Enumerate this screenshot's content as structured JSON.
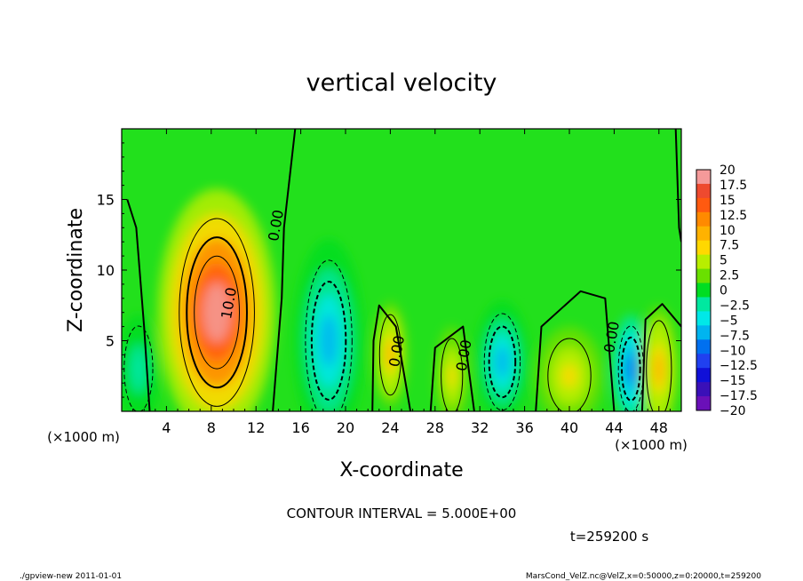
{
  "chart_data": {
    "type": "heatmap",
    "title": "vertical velocity",
    "xlabel": "X-coordinate",
    "ylabel": "Z-coordinate",
    "x_unit": "(×1000 m)",
    "y_unit": "(×1000 m)",
    "xlim": [
      0,
      50
    ],
    "ylim": [
      0,
      20
    ],
    "x_ticks": [
      "4",
      "8",
      "12",
      "16",
      "20",
      "24",
      "28",
      "32",
      "36",
      "40",
      "44",
      "48"
    ],
    "y_ticks": [
      "5",
      "10",
      "15"
    ],
    "contour_interval_text": "CONTOUR INTERVAL = 5.000E+00",
    "time_text": "t=259200 s",
    "contour_labels": [
      {
        "text": "0.00",
        "x": 14.2,
        "z": 13.1
      },
      {
        "text": "10.0",
        "x": 10.0,
        "z": 7.6
      },
      {
        "text": "0.00",
        "x": 25.0,
        "z": 4.2
      },
      {
        "text": "0.00",
        "x": 31.0,
        "z": 3.9
      },
      {
        "text": "0.00",
        "x": 44.2,
        "z": 5.2
      }
    ],
    "colorbar": {
      "levels": [
        20,
        17.5,
        15,
        12.5,
        10,
        7.5,
        5,
        2.5,
        0,
        -2.5,
        -5,
        -7.5,
        -10,
        -12.5,
        -15,
        -17.5,
        -20
      ],
      "labels": [
        "20",
        "17.5",
        "15",
        "12.5",
        "10",
        "7.5",
        "5",
        "2.5",
        "0",
        "−2.5",
        "−5",
        "−7.5",
        "−10",
        "−12.5",
        "−15",
        "−17.5",
        "−20"
      ],
      "colors": [
        "#f59a9a",
        "#ee4a2f",
        "#ff5a10",
        "#ff8a00",
        "#ffb200",
        "#ffd800",
        "#b8ee00",
        "#6ae000",
        "#00dd22",
        "#00e8a0",
        "#00e8e8",
        "#00b4f0",
        "#0070f0",
        "#2040f0",
        "#1010d8",
        "#3a10b8",
        "#6a10b8"
      ]
    },
    "features": [
      {
        "kind": "updraft",
        "x": 8.5,
        "z": 7.0,
        "peak": 17.5
      },
      {
        "kind": "downdraft",
        "x": 18.5,
        "z": 5.0,
        "peak": -10
      },
      {
        "kind": "updraft",
        "x": 24.0,
        "z": 4.0,
        "peak": 7.5
      },
      {
        "kind": "updraft",
        "x": 29.5,
        "z": 2.5,
        "peak": 5
      },
      {
        "kind": "downdraft",
        "x": 34.0,
        "z": 3.5,
        "peak": -10
      },
      {
        "kind": "updraft",
        "x": 40.0,
        "z": 2.5,
        "peak": 5
      },
      {
        "kind": "downdraft",
        "x": 45.5,
        "z": 3.0,
        "peak": -12.5
      },
      {
        "kind": "updraft",
        "x": 48.0,
        "z": 3.0,
        "peak": 7.5
      },
      {
        "kind": "downdraft",
        "x": 1.5,
        "z": 3.0,
        "peak": -5
      }
    ]
  },
  "footer": {
    "left": "./gpview-new   2011-01-01",
    "right": "MarsCond_VelZ.nc@VelZ,x=0:50000,z=0:20000,t=259200"
  }
}
